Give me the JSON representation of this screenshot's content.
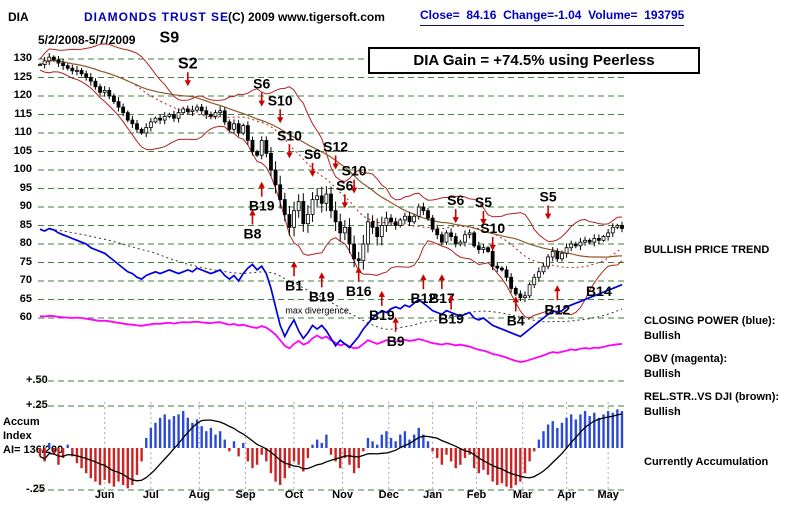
{
  "header": {
    "symbol": "DIA",
    "title": "DIAMONDS TRUST SE",
    "copyright": "(C) 2009 www.tigersoft.com",
    "close_label": "Close=",
    "close_value": "84.16",
    "change_label": "Change=",
    "change_value": "-1.04",
    "volume_label": "Volume=",
    "volume_value": "193795",
    "date_range": "5/2/2008-5/7/2009"
  },
  "banner": {
    "text": "DIA Gain = +74.5% using Peerless"
  },
  "right_panel": {
    "trend": "BULLISH PRICE TREND",
    "cp_label": "CLOSING POWER (blue):",
    "cp_value": "Bullish",
    "obv_label": "OBV (magenta):",
    "obv_value": "Bullish",
    "rs_label": "REL.STR..VS DJI (brown):",
    "rs_value": "Bullish",
    "accum_status": "Currently Accumulation"
  },
  "axis": {
    "price_ticks": [
      130,
      125,
      120,
      115,
      110,
      105,
      100,
      95,
      90,
      85,
      80,
      75,
      70,
      65,
      60
    ],
    "plus50": "+.50",
    "plus25": "+.25",
    "minus25": "-.25",
    "accum_line1": "Accum",
    "accum_line2": "Index",
    "ai": "AI= 136/200",
    "months": [
      "Jun",
      "Jul",
      "Aug",
      "Sep",
      "Oct",
      "Nov",
      "Dec",
      "Jan",
      "Feb",
      "Mar",
      "Apr",
      "May"
    ]
  },
  "annotations": {
    "note": "max divergence"
  },
  "chart_data": {
    "type": "composite: candlestick + line + histogram",
    "ylim": [
      60,
      130
    ],
    "accum_ylim": [
      -0.25,
      0.25
    ],
    "x_months": [
      "May",
      "Jun",
      "Jul",
      "Aug",
      "Sep",
      "Oct",
      "Nov",
      "Dec",
      "Jan",
      "Feb",
      "Mar",
      "Apr",
      "May"
    ],
    "series": [
      {
        "name": "DIA close",
        "type": "candlestick",
        "color": "#000000",
        "values": [
          128.5,
          129.5,
          130.5,
          129.8,
          128.9,
          128.2,
          127.5,
          126.8,
          126.9,
          126.0,
          125.0,
          124.0,
          122.5,
          121.0,
          121.5,
          120.0,
          118.5,
          117.0,
          115.5,
          113.5,
          112.5,
          111.0,
          110.0,
          111.5,
          113.0,
          114.0,
          113.5,
          114.5,
          115.0,
          114.0,
          115.5,
          116.5,
          115.8,
          116.2,
          117.0,
          116.0,
          115.0,
          114.5,
          115.5,
          116.0,
          113.0,
          111.0,
          112.5,
          110.0,
          112.0,
          108.0,
          105.0,
          104.0,
          108.0,
          104.5,
          100.0,
          96.0,
          92.0,
          88.0,
          84.5,
          89.0,
          91.5,
          85.5,
          88.0,
          92.0,
          93.0,
          91.0,
          93.5,
          89.0,
          86.0,
          83.0,
          84.5,
          80.0,
          76.0,
          75.5,
          80.0,
          86.0,
          84.5,
          82.0,
          85.0,
          87.0,
          86.0,
          85.0,
          86.5,
          87.5,
          86.0,
          87.5,
          90.0,
          89.0,
          87.0,
          84.0,
          82.5,
          80.5,
          83.0,
          82.0,
          80.0,
          80.5,
          82.5,
          83.0,
          79.5,
          78.5,
          79.0,
          78.0,
          74.0,
          73.5,
          73.0,
          71.0,
          68.0,
          66.5,
          65.5,
          66.0,
          69.0,
          71.0,
          72.5,
          74.0,
          76.5,
          78.0,
          76.0,
          77.5,
          79.0,
          80.0,
          79.5,
          80.5,
          81.0,
          80.5,
          81.5,
          81.0,
          82.0,
          83.0,
          84.5,
          85.0,
          84.2
        ]
      },
      {
        "name": "Closing Power",
        "type": "line",
        "color": "#0000dd",
        "values": [
          84.0,
          83.5,
          84.2,
          83.8,
          83.0,
          82.5,
          82.0,
          81.5,
          81.0,
          80.5,
          80.0,
          79.0,
          78.5,
          78.0,
          77.5,
          76.5,
          75.5,
          74.5,
          73.5,
          72.5,
          72.0,
          71.0,
          70.5,
          71.5,
          72.0,
          72.5,
          72.0,
          72.5,
          73.0,
          72.5,
          72.0,
          72.5,
          73.0,
          72.5,
          73.5,
          73.0,
          72.5,
          72.0,
          72.5,
          73.0,
          71.5,
          70.5,
          71.5,
          70.0,
          72.0,
          73.5,
          74.5,
          73.0,
          74.0,
          72.0,
          68.0,
          63.0,
          58.0,
          55.0,
          57.5,
          59.5,
          56.5,
          54.5,
          56.0,
          58.0,
          57.0,
          58.0,
          56.5,
          54.5,
          52.5,
          54.0,
          53.0,
          52.0,
          53.5,
          55.0,
          57.0,
          58.5,
          60.0,
          61.0,
          62.0,
          61.5,
          62.5,
          63.0,
          62.5,
          63.5,
          63.0,
          64.0,
          65.0,
          64.0,
          63.0,
          62.0,
          61.5,
          61.0,
          62.0,
          61.5,
          61.0,
          60.5,
          61.0,
          61.5,
          60.0,
          59.5,
          60.0,
          59.0,
          58.0,
          57.5,
          57.0,
          56.5,
          56.0,
          55.5,
          55.0,
          56.0,
          57.0,
          58.0,
          59.0,
          60.0,
          61.0,
          62.0,
          61.5,
          62.0,
          63.0,
          63.5,
          64.0,
          64.5,
          65.0,
          65.5,
          66.0,
          66.5,
          67.0,
          67.5,
          68.0,
          68.5,
          69.0
        ]
      },
      {
        "name": "OBV",
        "type": "line",
        "color": "#ff00ff",
        "values": [
          60.5,
          60.4,
          60.6,
          60.5,
          60.3,
          60.2,
          60.1,
          60.0,
          60.1,
          60.0,
          59.8,
          59.6,
          59.4,
          59.2,
          59.3,
          59.1,
          58.9,
          58.7,
          58.5,
          58.3,
          58.2,
          58.0,
          57.9,
          58.1,
          58.3,
          58.5,
          58.4,
          58.6,
          58.7,
          58.5,
          58.7,
          58.9,
          58.8,
          58.9,
          59.0,
          58.8,
          58.7,
          58.6,
          58.8,
          58.9,
          58.5,
          58.2,
          58.4,
          58.0,
          58.2,
          57.8,
          57.5,
          57.3,
          57.8,
          57.4,
          56.5,
          55.5,
          54.0,
          52.5,
          51.8,
          53.0,
          53.8,
          52.8,
          53.3,
          54.5,
          55.3,
          54.5,
          55.0,
          54.0,
          53.3,
          52.6,
          53.0,
          52.3,
          51.8,
          52.0,
          53.0,
          54.0,
          53.5,
          53.0,
          53.5,
          54.0,
          53.8,
          53.6,
          53.9,
          54.1,
          53.8,
          54.0,
          54.3,
          54.0,
          53.6,
          53.2,
          53.0,
          52.8,
          53.1,
          52.9,
          52.6,
          52.8,
          52.5,
          52.3,
          51.8,
          51.4,
          51.2,
          50.8,
          50.3,
          50.0,
          49.7,
          49.3,
          48.8,
          48.4,
          48.1,
          48.3,
          48.7,
          49.1,
          49.5,
          49.9,
          50.4,
          50.8,
          50.6,
          50.9,
          51.2,
          51.5,
          51.3,
          51.7,
          51.9,
          51.7,
          52.0,
          51.9,
          52.2,
          52.5,
          52.7,
          52.9,
          53.0
        ]
      },
      {
        "name": "Accumulation Index",
        "type": "histogram",
        "pos_color": "#2b4bd7",
        "neg_color": "#cc2222",
        "values": [
          -0.05,
          -0.08,
          0.03,
          -0.04,
          -0.1,
          -0.06,
          0.02,
          -0.05,
          -0.09,
          -0.12,
          -0.15,
          -0.18,
          -0.2,
          -0.22,
          -0.19,
          -0.21,
          -0.23,
          -0.2,
          -0.22,
          -0.24,
          -0.22,
          -0.16,
          -0.08,
          0.06,
          0.12,
          0.15,
          0.18,
          0.2,
          0.17,
          0.19,
          0.2,
          0.22,
          0.18,
          0.15,
          0.17,
          0.13,
          0.1,
          0.12,
          0.08,
          0.1,
          0.05,
          -0.02,
          0.04,
          -0.05,
          0.03,
          -0.08,
          -0.12,
          -0.1,
          -0.04,
          -0.08,
          -0.15,
          -0.2,
          -0.22,
          -0.18,
          -0.12,
          -0.08,
          -0.1,
          -0.14,
          -0.06,
          0.02,
          0.05,
          0.03,
          0.08,
          -0.04,
          -0.08,
          -0.12,
          -0.06,
          -0.1,
          -0.15,
          -0.12,
          -0.02,
          0.06,
          0.04,
          0.02,
          0.08,
          0.1,
          0.06,
          0.04,
          0.08,
          0.1,
          0.05,
          0.08,
          0.12,
          0.08,
          0.04,
          -0.02,
          -0.06,
          -0.1,
          -0.04,
          -0.08,
          -0.12,
          -0.1,
          -0.06,
          -0.04,
          -0.12,
          -0.15,
          -0.13,
          -0.16,
          -0.2,
          -0.22,
          -0.21,
          -0.23,
          -0.24,
          -0.22,
          -0.2,
          -0.15,
          -0.08,
          -0.02,
          0.05,
          0.1,
          0.14,
          0.16,
          0.12,
          0.15,
          0.18,
          0.2,
          0.17,
          0.2,
          0.22,
          0.19,
          0.21,
          0.18,
          0.2,
          0.22,
          0.21,
          0.23,
          0.22
        ]
      }
    ],
    "signals": [
      {
        "label": "S9",
        "type": "sell",
        "i": 28,
        "p": 134.5,
        "big": true,
        "arrow": false
      },
      {
        "label": "S2",
        "type": "sell",
        "i": 32,
        "p": 127.5,
        "big": true
      },
      {
        "label": "S6",
        "type": "sell",
        "i": 48,
        "p": 122.0
      },
      {
        "label": "S10",
        "type": "sell",
        "i": 52,
        "p": 117.5
      },
      {
        "label": "S10",
        "type": "sell",
        "i": 54,
        "p": 108.0
      },
      {
        "label": "S6",
        "type": "sell",
        "i": 59,
        "p": 103.0
      },
      {
        "label": "S12",
        "type": "sell",
        "i": 64,
        "p": 105.0
      },
      {
        "label": "S6",
        "type": "sell",
        "i": 66,
        "p": 94.5
      },
      {
        "label": "S10",
        "type": "sell",
        "i": 68,
        "p": 98.5
      },
      {
        "label": "B19",
        "type": "buy",
        "i": 48,
        "p": 89.0
      },
      {
        "label": "B8",
        "type": "buy",
        "i": 46,
        "p": 81.5
      },
      {
        "label": "S6",
        "type": "sell",
        "i": 90,
        "p": 90.5
      },
      {
        "label": "S5",
        "type": "sell",
        "i": 96,
        "p": 90.0
      },
      {
        "label": "S10",
        "type": "sell",
        "i": 98,
        "p": 83.0
      },
      {
        "label": "S5",
        "type": "sell",
        "i": 110,
        "p": 91.5
      },
      {
        "label": "B1",
        "type": "buy",
        "i": 55,
        "p": 67.5
      },
      {
        "label": "B19",
        "type": "buy",
        "i": 61,
        "p": 64.5
      },
      {
        "label": "B16",
        "type": "buy",
        "i": 69,
        "p": 66.0
      },
      {
        "label": "B19",
        "type": "buy",
        "i": 74,
        "p": 59.5
      },
      {
        "label": "B9",
        "type": "buy",
        "i": 77,
        "p": 52.5
      },
      {
        "label": "B12",
        "type": "buy",
        "i": 83,
        "p": 64.0
      },
      {
        "label": "B17",
        "type": "buy",
        "i": 87,
        "p": 64.0
      },
      {
        "label": "B19",
        "type": "buy",
        "i": 89,
        "p": 58.5
      },
      {
        "label": "B4",
        "type": "buy",
        "i": 103,
        "p": 58.0
      },
      {
        "label": "B12",
        "type": "buy",
        "i": 112,
        "p": 61.0
      },
      {
        "label": "B14",
        "type": "buy",
        "i": 121,
        "p": 66.0,
        "arrow": false
      }
    ]
  }
}
